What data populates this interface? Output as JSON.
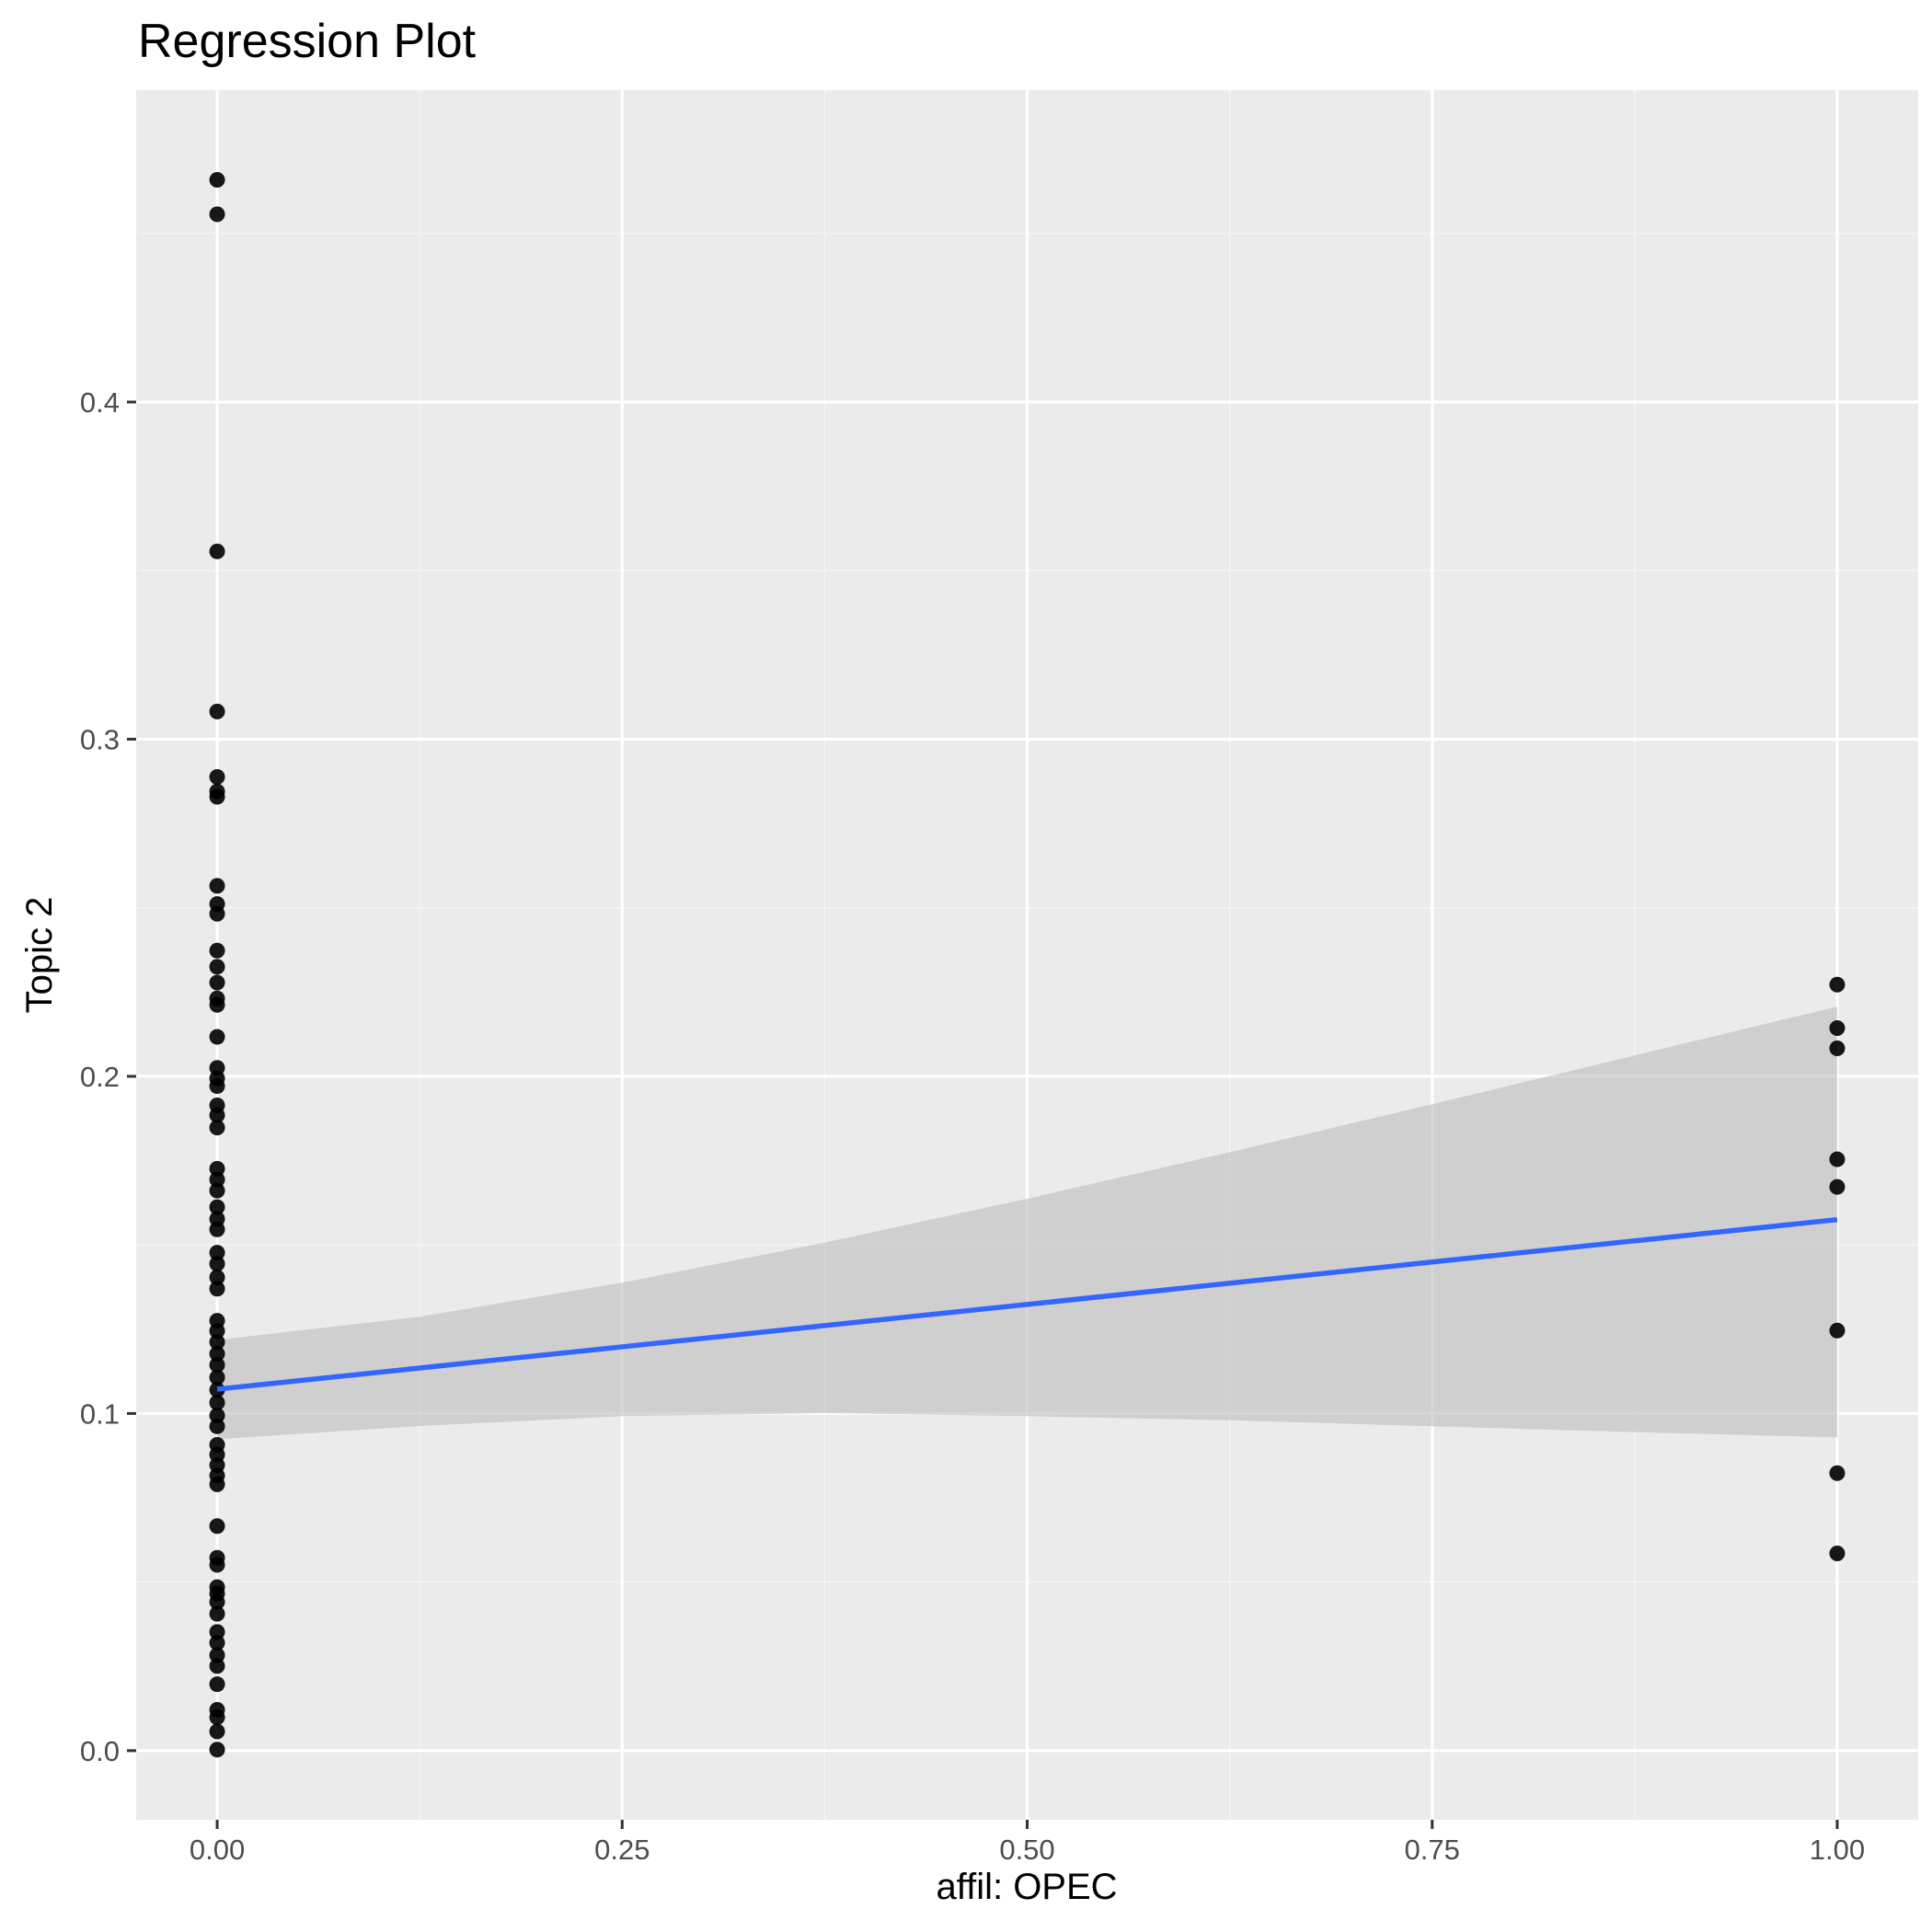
{
  "chart_data": {
    "type": "scatter",
    "title": "Regression Plot",
    "xlabel": "affil: OPEC",
    "ylabel": "Topic 2",
    "xlim": [
      -0.05,
      1.05
    ],
    "ylim": [
      -0.0205,
      0.4925
    ],
    "x_ticks": [
      0.0,
      0.25,
      0.5,
      0.75,
      1.0
    ],
    "x_tick_labels": [
      "0.00",
      "0.25",
      "0.50",
      "0.75",
      "1.00"
    ],
    "y_ticks": [
      0.0,
      0.1,
      0.2,
      0.3,
      0.4
    ],
    "y_tick_labels": [
      "0.0",
      "0.1",
      "0.2",
      "0.3",
      "0.4"
    ],
    "grid": true,
    "legend": "none",
    "colors": {
      "panel": "#ebebeb",
      "grid_major": "#ffffff",
      "grid_minor": "#f5f5f5",
      "points": "#000000",
      "line": "#3366ff",
      "band": "#bdbdbd"
    },
    "points": [
      {
        "x": 0,
        "y": 0.4659
      },
      {
        "x": 0,
        "y": 0.4557
      },
      {
        "x": 0,
        "y": 0.3557
      },
      {
        "x": 0,
        "y": 0.3082
      },
      {
        "x": 0,
        "y": 0.2888
      },
      {
        "x": 0,
        "y": 0.2845
      },
      {
        "x": 0,
        "y": 0.2829
      },
      {
        "x": 0,
        "y": 0.2565
      },
      {
        "x": 0,
        "y": 0.2511
      },
      {
        "x": 0,
        "y": 0.2482
      },
      {
        "x": 0,
        "y": 0.2373
      },
      {
        "x": 0,
        "y": 0.2325
      },
      {
        "x": 0,
        "y": 0.2278
      },
      {
        "x": 0,
        "y": 0.2231
      },
      {
        "x": 0,
        "y": 0.2212
      },
      {
        "x": 0,
        "y": 0.2117
      },
      {
        "x": 0,
        "y": 0.2025
      },
      {
        "x": 0,
        "y": 0.1994
      },
      {
        "x": 0,
        "y": 0.1971
      },
      {
        "x": 0,
        "y": 0.1914
      },
      {
        "x": 0,
        "y": 0.1885
      },
      {
        "x": 0,
        "y": 0.1848
      },
      {
        "x": 0,
        "y": 0.1726
      },
      {
        "x": 0,
        "y": 0.1694
      },
      {
        "x": 0,
        "y": 0.1661
      },
      {
        "x": 0,
        "y": 0.1612
      },
      {
        "x": 0,
        "y": 0.1577
      },
      {
        "x": 0,
        "y": 0.1546
      },
      {
        "x": 0,
        "y": 0.1477
      },
      {
        "x": 0,
        "y": 0.1444
      },
      {
        "x": 0,
        "y": 0.1404
      },
      {
        "x": 0,
        "y": 0.137
      },
      {
        "x": 0,
        "y": 0.1275
      },
      {
        "x": 0,
        "y": 0.1245
      },
      {
        "x": 0,
        "y": 0.1212
      },
      {
        "x": 0,
        "y": 0.1177
      },
      {
        "x": 0,
        "y": 0.1144
      },
      {
        "x": 0,
        "y": 0.1107
      },
      {
        "x": 0,
        "y": 0.107
      },
      {
        "x": 0,
        "y": 0.1032
      },
      {
        "x": 0,
        "y": 0.0994
      },
      {
        "x": 0,
        "y": 0.0962
      },
      {
        "x": 0,
        "y": 0.0907
      },
      {
        "x": 0,
        "y": 0.0878
      },
      {
        "x": 0,
        "y": 0.0847
      },
      {
        "x": 0,
        "y": 0.0816
      },
      {
        "x": 0,
        "y": 0.079
      },
      {
        "x": 0,
        "y": 0.0666
      },
      {
        "x": 0,
        "y": 0.0572
      },
      {
        "x": 0,
        "y": 0.0551
      },
      {
        "x": 0,
        "y": 0.0485
      },
      {
        "x": 0,
        "y": 0.0466
      },
      {
        "x": 0,
        "y": 0.0441
      },
      {
        "x": 0,
        "y": 0.0406
      },
      {
        "x": 0,
        "y": 0.0352
      },
      {
        "x": 0,
        "y": 0.032
      },
      {
        "x": 0,
        "y": 0.0283
      },
      {
        "x": 0,
        "y": 0.0251
      },
      {
        "x": 0,
        "y": 0.0197
      },
      {
        "x": 0,
        "y": 0.0121
      },
      {
        "x": 0,
        "y": 0.0099
      },
      {
        "x": 0,
        "y": 0.0057
      },
      {
        "x": 0,
        "y": 0.0003
      },
      {
        "x": 1,
        "y": 0.2272
      },
      {
        "x": 1,
        "y": 0.2143
      },
      {
        "x": 1,
        "y": 0.2083
      },
      {
        "x": 1,
        "y": 0.1754
      },
      {
        "x": 1,
        "y": 0.1672
      },
      {
        "x": 1,
        "y": 0.1246
      },
      {
        "x": 1,
        "y": 0.0823
      },
      {
        "x": 1,
        "y": 0.0585
      }
    ],
    "fit_line": {
      "x": [
        0,
        1
      ],
      "y": [
        0.1072,
        0.1575
      ]
    },
    "confidence_band": {
      "x": [
        0,
        0.125,
        0.25,
        0.375,
        0.5,
        0.625,
        0.75,
        0.875,
        1
      ],
      "upper": [
        0.1218,
        0.1287,
        0.1388,
        0.1507,
        0.1637,
        0.1775,
        0.1917,
        0.2062,
        0.2207
      ],
      "lower": [
        0.0924,
        0.0963,
        0.0992,
        0.1001,
        0.0992,
        0.098,
        0.0962,
        0.0945,
        0.0929
      ]
    }
  }
}
